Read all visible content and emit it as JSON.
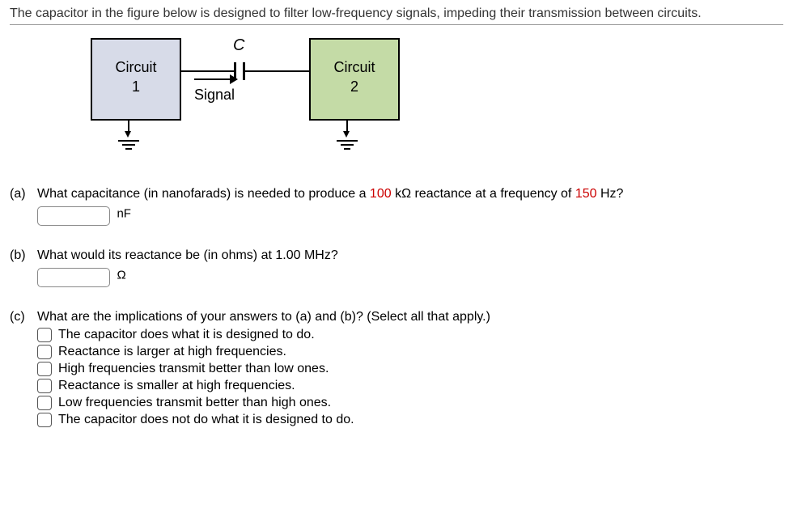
{
  "prompt": "The capacitor in the figure below is designed to filter low-frequency signals, impeding their transmission between circuits.",
  "figure": {
    "circuit1": {
      "line1": "Circuit",
      "line2": "1",
      "bg": "#d7dbe8"
    },
    "circuit2": {
      "line1": "Circuit",
      "line2": "2",
      "bg": "#c4dba6"
    },
    "cap_label": "C",
    "signal_label": "Signal"
  },
  "parts": {
    "a": {
      "label": "(a)",
      "text_segments": [
        "What capacitance (in nanofarads) is needed to produce a ",
        "100",
        " kΩ reactance at a frequency of ",
        "150",
        " Hz?"
      ],
      "segment_colors": [
        "#000",
        "#c00",
        "#000",
        "#c00",
        "#000"
      ],
      "unit": "nF",
      "input_value": ""
    },
    "b": {
      "label": "(b)",
      "text": "What would its reactance be (in ohms) at 1.00 MHz?",
      "unit": "Ω",
      "input_value": ""
    },
    "c": {
      "label": "(c)",
      "text": "What are the implications of your answers to (a) and (b)? (Select all that apply.)",
      "options": [
        "The capacitor does what it is designed to do.",
        "Reactance is larger at high frequencies.",
        "High frequencies transmit better than low ones.",
        "Reactance is smaller at high frequencies.",
        "Low frequencies transmit better than high ones.",
        "The capacitor does not do what it is designed to do."
      ],
      "checked": [
        false,
        false,
        false,
        false,
        false,
        false
      ]
    }
  }
}
